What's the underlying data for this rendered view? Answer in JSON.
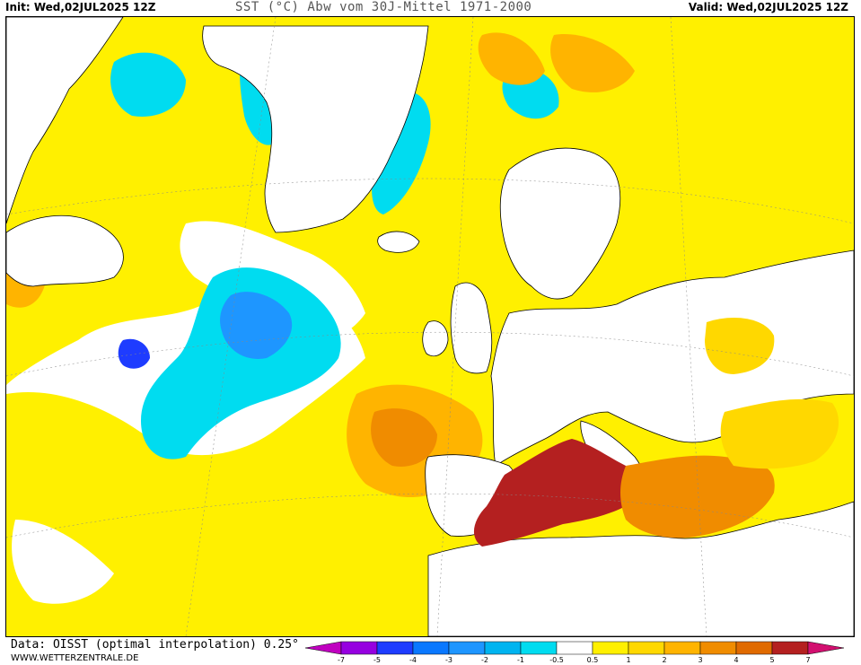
{
  "header": {
    "init": "Init: Wed,02JUL2025 12Z",
    "title": "SST (°C) Abw vom 30J-Mittel 1971-2000",
    "valid": "Valid: Wed,02JUL2025 12Z"
  },
  "footer": {
    "source": "Data: OISST (optimal interpolation) 0.25°",
    "site": "WWW.WETTERZENTRALE.DE"
  },
  "legend": {
    "colors": [
      "#c000c0",
      "#9600e0",
      "#1e3cff",
      "#0a78ff",
      "#1e96ff",
      "#00b4f0",
      "#00dcf0",
      "#ffffff",
      "#fff000",
      "#ffd800",
      "#ffb400",
      "#f08c00",
      "#e06a00",
      "#b42020",
      "#d21070"
    ],
    "labels": [
      "-7",
      "-5",
      "-4",
      "-3",
      "-2",
      "-1",
      "-0.5",
      "0.5",
      "1",
      "2",
      "3",
      "4",
      "5",
      "7"
    ]
  },
  "map": {
    "colors": {
      "land": "#ffffff",
      "coast": "#000000",
      "ocean_warm1": "#fff000",
      "ocean_warm2": "#ffd800",
      "ocean_warm3": "#ffb400",
      "ocean_warm4": "#f08c00",
      "ocean_hot": "#b42020",
      "ocean_cool1": "#00dcf0",
      "ocean_cool2": "#1e96ff",
      "ocean_neutral": "#ffffff"
    }
  }
}
